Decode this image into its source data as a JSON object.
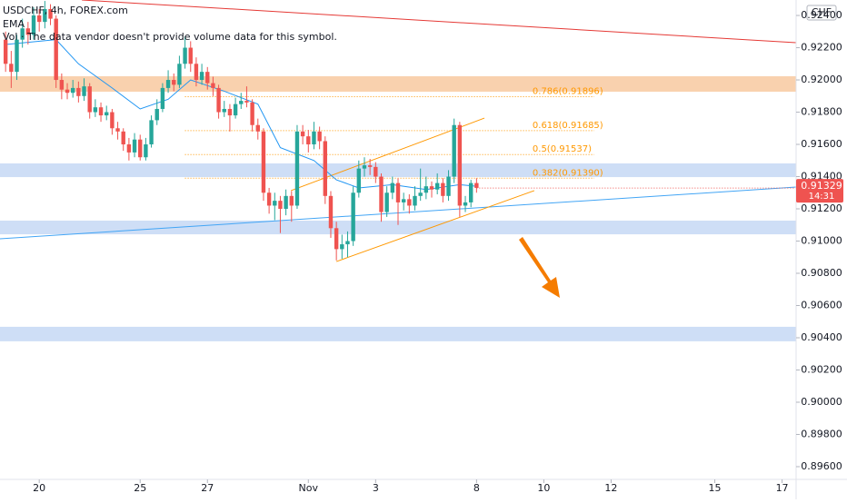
{
  "chart_data": {
    "type": "candlestick",
    "symbol": "USDCHF, 4h, FOREX.com",
    "indicator": "EMA",
    "volume_note": "Vol · The data vendor doesn't provide volume data for this symbol.",
    "currency": "CHF",
    "last_price": 0.91329,
    "countdown": "14:31",
    "up_color": "#26a69a",
    "down_color": "#ef5350",
    "xlim": [
      0,
      142
    ],
    "xticks": [
      {
        "value": 7,
        "label": "20"
      },
      {
        "value": 25,
        "label": "25"
      },
      {
        "value": 37,
        "label": "27"
      },
      {
        "value": 55,
        "label": "Nov"
      },
      {
        "value": 67,
        "label": "3"
      },
      {
        "value": 85,
        "label": "8"
      },
      {
        "value": 97,
        "label": "10"
      },
      {
        "value": 109,
        "label": "12"
      },
      {
        "value": 127.5,
        "label": "15"
      },
      {
        "value": 139.5,
        "label": "17"
      }
    ],
    "ylim": [
      0.89521,
      0.92496
    ],
    "yticks": [
      {
        "value": 0.924,
        "label": "0.92400"
      },
      {
        "value": 0.922,
        "label": "0.92200"
      },
      {
        "value": 0.92,
        "label": "0.92000"
      },
      {
        "value": 0.918,
        "label": "0.91800"
      },
      {
        "value": 0.916,
        "label": "0.91600"
      },
      {
        "value": 0.914,
        "label": "0.91400"
      },
      {
        "value": 0.912,
        "label": "0.91200"
      },
      {
        "value": 0.91,
        "label": "0.91000"
      },
      {
        "value": 0.908,
        "label": "0.90800"
      },
      {
        "value": 0.906,
        "label": "0.90600"
      },
      {
        "value": 0.904,
        "label": "0.90400"
      },
      {
        "value": 0.902,
        "label": "0.90200"
      },
      {
        "value": 0.9,
        "label": "0.90000"
      },
      {
        "value": 0.898,
        "label": "0.89800"
      },
      {
        "value": 0.896,
        "label": "0.89600"
      }
    ],
    "candles": [
      [
        0.9225,
        0.923,
        0.9205,
        0.921
      ],
      [
        0.921,
        0.9218,
        0.9195,
        0.9205
      ],
      [
        0.9205,
        0.9228,
        0.92,
        0.9225
      ],
      [
        0.9225,
        0.9238,
        0.922,
        0.9232
      ],
      [
        0.9232,
        0.9236,
        0.9222,
        0.9228
      ],
      [
        0.9228,
        0.9245,
        0.9225,
        0.924
      ],
      [
        0.924,
        0.9244,
        0.923,
        0.9236
      ],
      [
        0.9236,
        0.9249,
        0.9232,
        0.9244
      ],
      [
        0.9244,
        0.9247,
        0.9234,
        0.9238
      ],
      [
        0.9238,
        0.924,
        0.9195,
        0.92
      ],
      [
        0.92,
        0.9204,
        0.9188,
        0.9194
      ],
      [
        0.9194,
        0.9198,
        0.9188,
        0.9192
      ],
      [
        0.9192,
        0.92,
        0.9189,
        0.9195
      ],
      [
        0.9195,
        0.9199,
        0.9186,
        0.919
      ],
      [
        0.919,
        0.9201,
        0.9187,
        0.9196
      ],
      [
        0.9196,
        0.9198,
        0.9176,
        0.918
      ],
      [
        0.918,
        0.9188,
        0.9177,
        0.9183
      ],
      [
        0.9183,
        0.9186,
        0.9174,
        0.9178
      ],
      [
        0.9178,
        0.9184,
        0.9175,
        0.918
      ],
      [
        0.918,
        0.9182,
        0.9166,
        0.917
      ],
      [
        0.917,
        0.9174,
        0.9163,
        0.9168
      ],
      [
        0.9168,
        0.917,
        0.9156,
        0.916
      ],
      [
        0.916,
        0.9164,
        0.915,
        0.9155
      ],
      [
        0.9155,
        0.9167,
        0.9152,
        0.9163
      ],
      [
        0.9163,
        0.9166,
        0.915,
        0.9152
      ],
      [
        0.9152,
        0.9164,
        0.915,
        0.916
      ],
      [
        0.916,
        0.9178,
        0.9158,
        0.9175
      ],
      [
        0.9175,
        0.9188,
        0.9172,
        0.9182
      ],
      [
        0.9182,
        0.9198,
        0.918,
        0.9195
      ],
      [
        0.9195,
        0.9206,
        0.9192,
        0.92
      ],
      [
        0.92,
        0.9204,
        0.9193,
        0.9197
      ],
      [
        0.9197,
        0.9215,
        0.9195,
        0.921
      ],
      [
        0.921,
        0.9227,
        0.9207,
        0.922
      ],
      [
        0.922,
        0.9224,
        0.9205,
        0.921
      ],
      [
        0.921,
        0.9214,
        0.9196,
        0.92
      ],
      [
        0.92,
        0.921,
        0.9197,
        0.9205
      ],
      [
        0.9205,
        0.9208,
        0.9194,
        0.9198
      ],
      [
        0.9198,
        0.9202,
        0.919,
        0.9195
      ],
      [
        0.9195,
        0.9197,
        0.9176,
        0.918
      ],
      [
        0.918,
        0.9187,
        0.9177,
        0.9182
      ],
      [
        0.9182,
        0.9185,
        0.9168,
        0.9178
      ],
      [
        0.9178,
        0.9189,
        0.9176,
        0.9185
      ],
      [
        0.9185,
        0.9192,
        0.9182,
        0.9187
      ],
      [
        0.9187,
        0.9196,
        0.9183,
        0.9186
      ],
      [
        0.9186,
        0.9188,
        0.9168,
        0.9172
      ],
      [
        0.9172,
        0.9176,
        0.9163,
        0.9168
      ],
      [
        0.9168,
        0.917,
        0.9125,
        0.913
      ],
      [
        0.913,
        0.9133,
        0.9117,
        0.9122
      ],
      [
        0.9122,
        0.913,
        0.9113,
        0.9125
      ],
      [
        0.9125,
        0.9128,
        0.9105,
        0.912
      ],
      [
        0.912,
        0.9132,
        0.9116,
        0.9128
      ],
      [
        0.9128,
        0.9131,
        0.9112,
        0.9122
      ],
      [
        0.9122,
        0.9172,
        0.912,
        0.9168
      ],
      [
        0.9168,
        0.9172,
        0.916,
        0.9165
      ],
      [
        0.9165,
        0.9169,
        0.9155,
        0.916
      ],
      [
        0.916,
        0.9174,
        0.9157,
        0.9168
      ],
      [
        0.9168,
        0.9171,
        0.9157,
        0.9162
      ],
      [
        0.9162,
        0.9165,
        0.9123,
        0.9128
      ],
      [
        0.9128,
        0.9131,
        0.9102,
        0.9108
      ],
      [
        0.9108,
        0.9112,
        0.9088,
        0.9095
      ],
      [
        0.9095,
        0.9104,
        0.9089,
        0.9098
      ],
      [
        0.9098,
        0.9106,
        0.909,
        0.91
      ],
      [
        0.91,
        0.9134,
        0.9097,
        0.913
      ],
      [
        0.913,
        0.915,
        0.9127,
        0.9145
      ],
      [
        0.9145,
        0.9152,
        0.914,
        0.9147
      ],
      [
        0.9147,
        0.9151,
        0.9141,
        0.9146
      ],
      [
        0.9146,
        0.9149,
        0.9136,
        0.914
      ],
      [
        0.914,
        0.9142,
        0.9112,
        0.9118
      ],
      [
        0.9118,
        0.9134,
        0.9115,
        0.913
      ],
      [
        0.913,
        0.914,
        0.9126,
        0.9136
      ],
      [
        0.9136,
        0.9139,
        0.911,
        0.9124
      ],
      [
        0.9124,
        0.913,
        0.9119,
        0.9126
      ],
      [
        0.9126,
        0.9129,
        0.9117,
        0.9122
      ],
      [
        0.9122,
        0.9134,
        0.9119,
        0.9128
      ],
      [
        0.9128,
        0.9145,
        0.9125,
        0.913
      ],
      [
        0.913,
        0.914,
        0.9126,
        0.9134
      ],
      [
        0.9134,
        0.9137,
        0.9127,
        0.9132
      ],
      [
        0.9132,
        0.9142,
        0.9129,
        0.9136
      ],
      [
        0.9136,
        0.9139,
        0.9124,
        0.9128
      ],
      [
        0.9128,
        0.9144,
        0.9125,
        0.914
      ],
      [
        0.914,
        0.9176,
        0.9136,
        0.9172
      ],
      [
        0.9172,
        0.9174,
        0.9115,
        0.9122
      ],
      [
        0.9122,
        0.9128,
        0.9118,
        0.9124
      ],
      [
        0.9124,
        0.9138,
        0.9121,
        0.9136
      ],
      [
        0.9136,
        0.9139,
        0.913,
        0.9133
      ]
    ],
    "ema": {
      "color": "#2196f3",
      "x": [
        1,
        10,
        14,
        20,
        25,
        30,
        34,
        40,
        46,
        50,
        56,
        60,
        64,
        70,
        76,
        82,
        85
      ],
      "values": [
        0.9222,
        0.9225,
        0.921,
        0.9195,
        0.9182,
        0.9188,
        0.92,
        0.9193,
        0.9185,
        0.9158,
        0.915,
        0.9138,
        0.9133,
        0.9135,
        0.9132,
        0.9135,
        0.9134
      ]
    },
    "zones": [
      {
        "from": 0.91927,
        "to": 0.92023,
        "color": "#f8c9a0"
      },
      {
        "from": 0.91397,
        "to": 0.91482,
        "color": "#c5d8f5"
      },
      {
        "from": 0.91042,
        "to": 0.91127,
        "color": "#c5d8f5"
      },
      {
        "from": 0.90378,
        "to": 0.90468,
        "color": "#c5d8f5"
      }
    ],
    "trend_lines": [
      {
        "x": [
          14.6,
          142
        ],
        "values": [
          0.92496,
          0.92231
        ],
        "color": "#e53935"
      },
      {
        "x": [
          0,
          142
        ],
        "values": [
          0.91014,
          0.91335
        ],
        "color": "#42a5f5"
      },
      {
        "x": [
          51.9,
          86.4
        ],
        "values": [
          0.91313,
          0.91763
        ],
        "color": "#ff9800"
      },
      {
        "x": [
          60,
          95.3
        ],
        "values": [
          0.90873,
          0.91313
        ],
        "color": "#ff9800"
      }
    ],
    "fib_x": [
      33,
      106
    ],
    "fib_color": "#ff9800",
    "fib_levels": [
      {
        "value": 0.91896,
        "label": "0.786(0.91896)"
      },
      {
        "value": 0.91685,
        "label": "0.618(0.91685)"
      },
      {
        "value": 0.91537,
        "label": "0.5(0.91537)"
      },
      {
        "value": 0.9139,
        "label": "0.382(0.91390)"
      }
    ]
  }
}
